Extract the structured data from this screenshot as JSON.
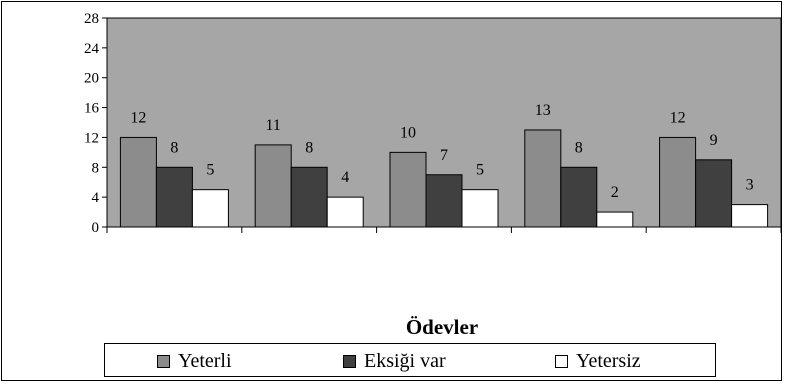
{
  "chart_data": {
    "type": "bar",
    "categories": [
      "",
      "",
      "",
      "",
      ""
    ],
    "series": [
      {
        "name": "Yeterli",
        "color": "#8c8c8c",
        "values": [
          12,
          11,
          10,
          13,
          12
        ]
      },
      {
        "name": "Eksiği var",
        "color": "#404040",
        "values": [
          8,
          8,
          7,
          8,
          9
        ]
      },
      {
        "name": "Yetersiz",
        "color": "#ffffff",
        "values": [
          5,
          4,
          5,
          2,
          3
        ]
      }
    ],
    "title": "",
    "xlabel": "Ödevler",
    "ylabel": "",
    "ylim": [
      0,
      28
    ],
    "yticks": [
      0,
      4,
      8,
      12,
      16,
      20,
      24,
      28
    ],
    "plot_background": "#a6a6a6",
    "grid": false,
    "legend_position": "bottom",
    "data_labels": true
  }
}
